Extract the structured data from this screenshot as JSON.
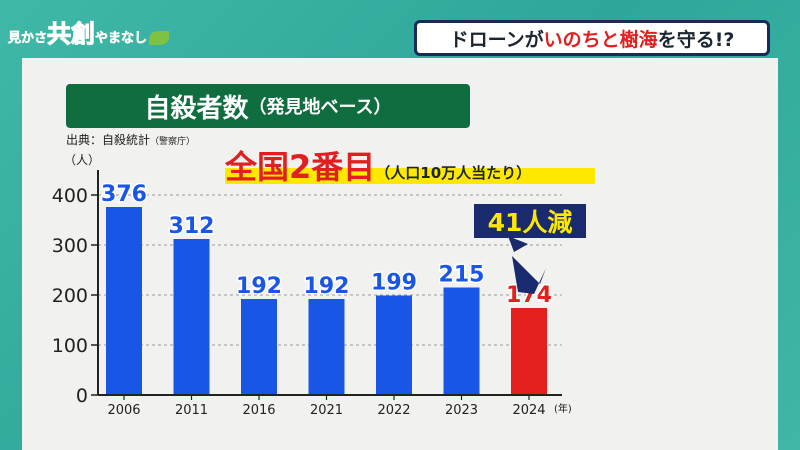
{
  "logo": {
    "text_small_1": "見かさ",
    "text_big": "共創",
    "text_small_2": "やまなし"
  },
  "topic": {
    "part1": "ドローンが",
    "part2": "いのちと樹海",
    "part3": "を守る!?"
  },
  "title": {
    "main": "自殺者数",
    "sub": "（発見地ベース）"
  },
  "source": {
    "label": "出典：自殺統計",
    "agency": "（警察庁）"
  },
  "ranking": {
    "main": "全国2番目",
    "note": "（人口10万人当たり）"
  },
  "callout": "41人減",
  "colors": {
    "bar_blue": "#1a56e6",
    "bar_red": "#e3201b",
    "label_blue": "#1a56e6",
    "label_red": "#e3201b",
    "title_green": "#0f6d3f",
    "callout_navy": "#192a6e",
    "highlight_yellow": "#ffe800"
  },
  "chart_data": {
    "type": "bar",
    "categories": [
      "2006",
      "2011",
      "2016",
      "2021",
      "2022",
      "2023",
      "2024"
    ],
    "values": [
      376,
      312,
      192,
      192,
      199,
      215,
      174
    ],
    "value_labels": [
      "376",
      "312",
      "192",
      "192",
      "199",
      "215",
      "174"
    ],
    "highlight_index": 6,
    "ylim": [
      0,
      400
    ],
    "yticks": [
      0,
      100,
      200,
      300,
      400
    ],
    "ytick_labels": [
      "0",
      "100",
      "200",
      "300",
      "400"
    ],
    "ylabel": "（人）",
    "xunit": "(年)",
    "grid": true
  }
}
